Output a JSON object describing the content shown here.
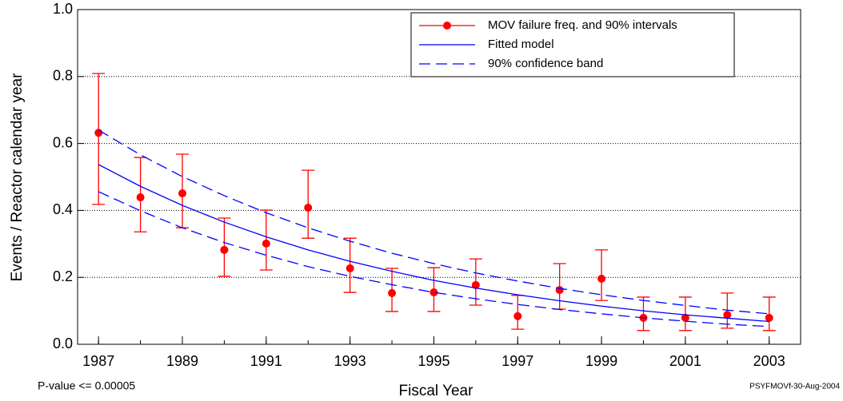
{
  "chart_data": {
    "type": "errorbar-line",
    "x_label": "Fiscal Year",
    "y_label": "Events / Reactor calendar year",
    "annotations": [
      "P-value <= 0.00005",
      "PSYFMOVf-30-Aug-2004"
    ],
    "x": [
      1987,
      1988,
      1989,
      1990,
      1991,
      1992,
      1993,
      1994,
      1995,
      1996,
      1997,
      1998,
      1999,
      2000,
      2001,
      2002,
      2003
    ],
    "xlim": [
      1986.5,
      2003.75
    ],
    "xticks": [
      1987,
      1989,
      1991,
      1993,
      1995,
      1997,
      1999,
      2001,
      2003
    ],
    "ylim": [
      0,
      1
    ],
    "yticks": [
      {
        "value": 0,
        "label": "0.0"
      },
      0.2,
      0.4,
      0.6,
      0.8,
      {
        "value": 1,
        "label": "1.0"
      }
    ],
    "grid": true,
    "legend": "top-right",
    "series": [
      {
        "name": "MOV failure freq. and 90% intervals",
        "color": "#ff0000",
        "style": "points",
        "values": [
          0.632,
          0.439,
          0.451,
          0.282,
          0.301,
          0.408,
          0.227,
          0.153,
          0.155,
          0.177,
          0.084,
          0.162,
          0.196,
          0.079,
          0.079,
          0.088,
          0.079
        ],
        "lower": [
          0.418,
          0.336,
          0.348,
          0.203,
          0.222,
          0.317,
          0.155,
          0.098,
          0.098,
          0.117,
          0.045,
          0.105,
          0.131,
          0.041,
          0.041,
          0.048,
          0.041
        ],
        "upper": [
          0.809,
          0.558,
          0.568,
          0.377,
          0.401,
          0.52,
          0.317,
          0.227,
          0.229,
          0.255,
          0.146,
          0.241,
          0.282,
          0.141,
          0.141,
          0.153,
          0.141
        ]
      },
      {
        "name": "Fitted model",
        "color": "#0000ff",
        "style": "line",
        "values": [
          0.537,
          0.472,
          0.415,
          0.365,
          0.321,
          0.282,
          0.248,
          0.218,
          0.191,
          0.168,
          0.148,
          0.13,
          0.114,
          0.1,
          0.088,
          0.078,
          0.068
        ]
      },
      {
        "name": "90% confidence band",
        "color": "#0000ff",
        "style": "band",
        "lower": [
          0.456,
          0.399,
          0.348,
          0.304,
          0.266,
          0.232,
          0.203,
          0.178,
          0.155,
          0.136,
          0.119,
          0.104,
          0.091,
          0.079,
          0.069,
          0.06,
          0.053
        ],
        "upper": [
          0.64,
          0.566,
          0.501,
          0.444,
          0.393,
          0.348,
          0.308,
          0.272,
          0.241,
          0.213,
          0.189,
          0.167,
          0.148,
          0.131,
          0.116,
          0.102,
          0.091
        ]
      }
    ]
  }
}
